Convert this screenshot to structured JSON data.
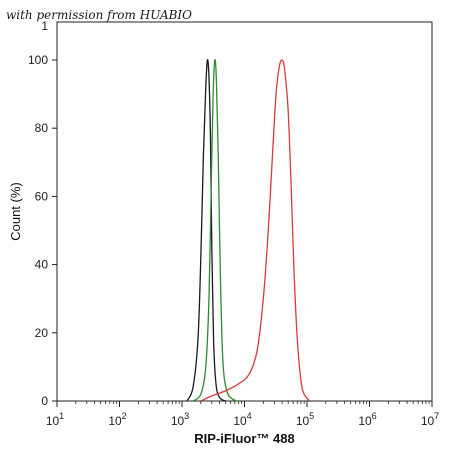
{
  "watermark": "with permission from HUABIO",
  "chart_data": {
    "type": "line",
    "xlabel": "RIP-iFluor™ 488",
    "ylabel": "Count  (%)",
    "xscale": "log",
    "xlim": [
      10,
      10000000
    ],
    "ylim": [
      0,
      100
    ],
    "x_ticks": [
      {
        "base": "10",
        "exp": "1",
        "value": 10
      },
      {
        "base": "10",
        "exp": "2",
        "value": 100
      },
      {
        "base": "10",
        "exp": "3",
        "value": 1000
      },
      {
        "base": "10",
        "exp": "4",
        "value": 10000
      },
      {
        "base": "10",
        "exp": "5",
        "value": 100000
      },
      {
        "base": "10",
        "exp": "6",
        "value": 1000000
      },
      {
        "base": "10",
        "exp": "7",
        "value": 10000000
      }
    ],
    "y_ticks": [
      "0",
      "20",
      "40",
      "60",
      "80",
      "100"
    ],
    "y_top_tick": "1",
    "grid": false,
    "series": [
      {
        "color": "#1a1a1a",
        "x": [
          1200,
          1500,
          1800,
          2000,
          2200,
          2400,
          2550,
          2700,
          2850,
          3000,
          3200,
          3500,
          4000,
          5000
        ],
        "y": [
          0,
          4,
          18,
          42,
          72,
          92,
          100,
          95,
          78,
          45,
          18,
          5,
          1,
          0
        ]
      },
      {
        "color": "#2e8b2e",
        "x": [
          1500,
          2000,
          2400,
          2700,
          2950,
          3150,
          3350,
          3550,
          3800,
          4100,
          4500,
          5200,
          6500,
          8000
        ],
        "y": [
          0,
          2,
          10,
          30,
          65,
          90,
          100,
          94,
          72,
          38,
          12,
          3,
          0.5,
          0
        ]
      },
      {
        "color": "#d83a3a",
        "x": [
          2000,
          3000,
          5000,
          8000,
          12000,
          16000,
          20000,
          24000,
          28000,
          32000,
          36000,
          40000,
          44000,
          50000,
          56000,
          62000,
          70000,
          80000,
          90000,
          110000
        ],
        "y": [
          0,
          1.5,
          3,
          5,
          8,
          15,
          30,
          50,
          72,
          90,
          98,
          100,
          97,
          85,
          62,
          38,
          18,
          6,
          2,
          0
        ]
      }
    ]
  }
}
